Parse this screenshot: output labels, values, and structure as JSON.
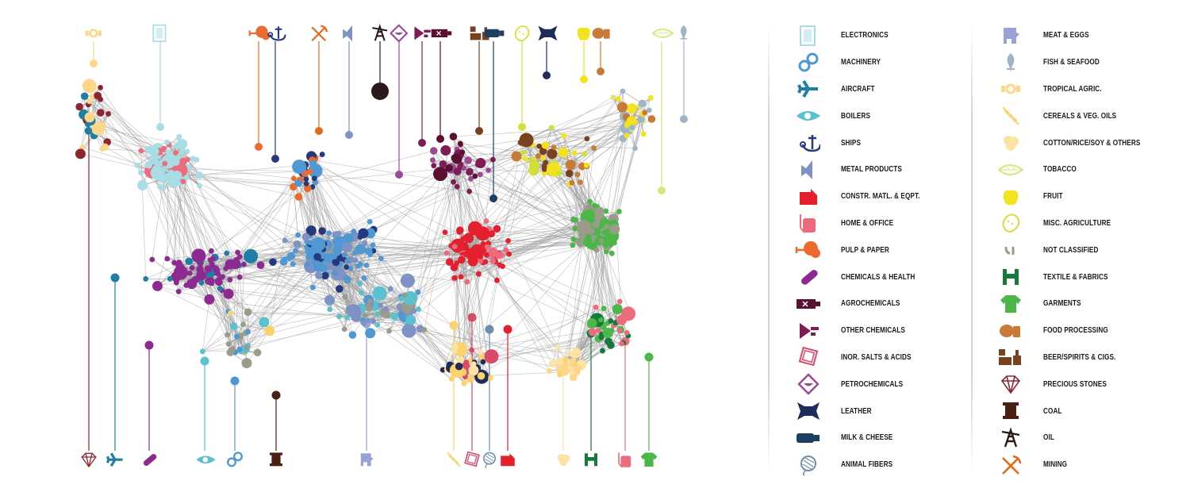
{
  "legend": {
    "left": [
      {
        "label": "ELECTRONICS",
        "color": "#a8dde6",
        "icon": "electronics-icon"
      },
      {
        "label": "MACHINERY",
        "color": "#4f98d3",
        "icon": "machinery-icon"
      },
      {
        "label": "AIRCRAFT",
        "color": "#1f7ea3",
        "icon": "aircraft-icon"
      },
      {
        "label": "BOILERS",
        "color": "#5bc1cf",
        "icon": "boilers-icon"
      },
      {
        "label": "SHIPS",
        "color": "#26397c",
        "icon": "ships-icon"
      },
      {
        "label": "METAL PRODUCTS",
        "color": "#7f92c6",
        "icon": "metal-products-icon"
      },
      {
        "label": "CONSTR. MATL. & EQPT.",
        "color": "#e5202e",
        "icon": "construction-icon"
      },
      {
        "label": "HOME & OFFICE",
        "color": "#ee6b7d",
        "icon": "home-office-icon"
      },
      {
        "label": "PULP & PAPER",
        "color": "#ed6a2f",
        "icon": "pulp-paper-icon"
      },
      {
        "label": "CHEMICALS & HEALTH",
        "color": "#8c2a91",
        "icon": "chemicals-health-icon"
      },
      {
        "label": "AGROCHEMICALS",
        "color": "#5a1030",
        "icon": "agrochemicals-icon"
      },
      {
        "label": "OTHER CHEMICALS",
        "color": "#7c1d55",
        "icon": "other-chemicals-icon"
      },
      {
        "label": "INOR. SALTS & ACIDS",
        "color": "#d84a6a",
        "icon": "inorganic-salts-icon"
      },
      {
        "label": "PETROCHEMICALS",
        "color": "#9b4a96",
        "icon": "petrochemicals-icon"
      },
      {
        "label": "LEATHER",
        "color": "#1f2c5a",
        "icon": "leather-icon"
      },
      {
        "label": "MILK & CHEESE",
        "color": "#1d3f62",
        "icon": "milk-cheese-icon"
      },
      {
        "label": "ANIMAL FIBERS",
        "color": "#6f8fa8",
        "icon": "animal-fibers-icon"
      }
    ],
    "right": [
      {
        "label": "MEAT & EGGS",
        "color": "#9aa1d6",
        "icon": "meat-eggs-icon"
      },
      {
        "label": "FISH & SEAFOOD",
        "color": "#9fb4c6",
        "icon": "fish-seafood-icon"
      },
      {
        "label": "TROPICAL AGRIC.",
        "color": "#fcd789",
        "icon": "tropical-agric-icon"
      },
      {
        "label": "CEREALS & VEG. OILS",
        "color": "#fbd26b",
        "icon": "cereals-icon"
      },
      {
        "label": "COTTON/RICE/SOY & OTHERS",
        "color": "#fde3a3",
        "icon": "cotton-icon"
      },
      {
        "label": "TOBACCO",
        "color": "#d8e67c",
        "icon": "tobacco-icon"
      },
      {
        "label": "FRUIT",
        "color": "#f5e21e",
        "icon": "fruit-icon"
      },
      {
        "label": "MISC. AGRICULTURE",
        "color": "#d3de36",
        "icon": "misc-agriculture-icon"
      },
      {
        "label": "NOT CLASSIFIED",
        "color": "#9b9b8c",
        "icon": "not-classified-icon"
      },
      {
        "label": "TEXTILE & FABRICS",
        "color": "#157a3b",
        "icon": "textile-icon"
      },
      {
        "label": "GARMENTS",
        "color": "#4cb748",
        "icon": "garments-icon"
      },
      {
        "label": "FOOD PROCESSING",
        "color": "#c97a36",
        "icon": "food-processing-icon"
      },
      {
        "label": "BEER/SPIRITS & CIGS.",
        "color": "#7a4120",
        "icon": "beer-spirits-icon"
      },
      {
        "label": "PRECIOUS STONES",
        "color": "#8b2630",
        "icon": "precious-stones-icon"
      },
      {
        "label": "COAL",
        "color": "#4a1f14",
        "icon": "coal-icon"
      },
      {
        "label": "OIL",
        "color": "#2a1a1a",
        "icon": "oil-icon"
      },
      {
        "label": "MINING",
        "color": "#e36a1b",
        "icon": "mining-icon"
      }
    ]
  },
  "graph": {
    "top_icons": [
      {
        "icon": "tropical-agric-icon",
        "color": "#fcd789"
      },
      {
        "icon": "electronics-icon",
        "color": "#a8dde6"
      },
      {
        "icon": "pulp-paper-icon",
        "color": "#ed6a2f"
      },
      {
        "icon": "ships-icon",
        "color": "#26397c"
      },
      {
        "icon": "mining-icon",
        "color": "#e36a1b"
      },
      {
        "icon": "metal-products-icon",
        "color": "#7f92c6"
      },
      {
        "icon": "oil-icon",
        "color": "#2a1a1a"
      },
      {
        "icon": "petrochemicals-icon",
        "color": "#9b4a96"
      },
      {
        "icon": "other-chemicals-icon",
        "color": "#7c1d55"
      },
      {
        "icon": "agrochemicals-icon",
        "color": "#5a1030"
      },
      {
        "icon": "beer-spirits-icon",
        "color": "#7a4120"
      },
      {
        "icon": "milk-cheese-icon",
        "color": "#1d3f62"
      },
      {
        "icon": "misc-agriculture-icon",
        "color": "#d3de36"
      },
      {
        "icon": "leather-icon",
        "color": "#1f2c5a"
      },
      {
        "icon": "fruit-icon",
        "color": "#f5e21e"
      },
      {
        "icon": "food-processing-icon",
        "color": "#c97a36"
      },
      {
        "icon": "tobacco-icon",
        "color": "#d8e67c"
      },
      {
        "icon": "fish-seafood-icon",
        "color": "#9fb4c6"
      }
    ],
    "bottom_icons": [
      {
        "icon": "precious-stones-icon",
        "color": "#8b2630"
      },
      {
        "icon": "aircraft-icon",
        "color": "#1f7ea3"
      },
      {
        "icon": "chemicals-health-icon",
        "color": "#8c2a91"
      },
      {
        "icon": "boilers-icon",
        "color": "#5bc1cf"
      },
      {
        "icon": "machinery-icon",
        "color": "#4f98d3"
      },
      {
        "icon": "coal-icon",
        "color": "#4a1f14"
      },
      {
        "icon": "meat-eggs-icon",
        "color": "#9aa1d6"
      },
      {
        "icon": "cereals-icon",
        "color": "#fbd26b"
      },
      {
        "icon": "inorganic-salts-icon",
        "color": "#d84a6a"
      },
      {
        "icon": "animal-fibers-icon",
        "color": "#6f8fa8"
      },
      {
        "icon": "construction-icon",
        "color": "#e5202e"
      },
      {
        "icon": "cotton-icon",
        "color": "#fde3a3"
      },
      {
        "icon": "textile-icon",
        "color": "#157a3b"
      },
      {
        "icon": "home-office-icon",
        "color": "#ee6b7d"
      },
      {
        "icon": "garments-icon",
        "color": "#4cb748"
      }
    ]
  }
}
